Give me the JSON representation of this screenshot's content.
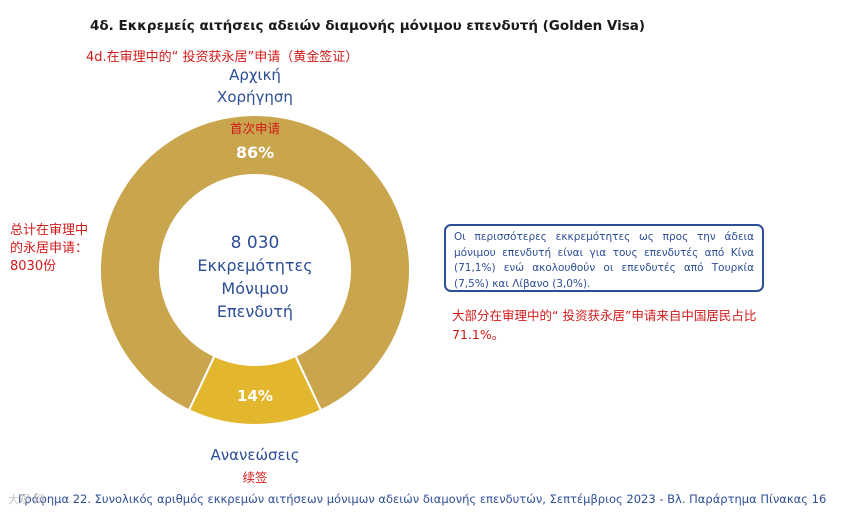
{
  "header": {
    "title": "4δ. Εκκρεμείς αιτήσεις αδειών διαμονής μόνιμου επενδυτή (Golden Visa)",
    "subtitle_cn": "4d.在审理中的“ 投资获永居”申请（黄金签证）"
  },
  "chart_data": {
    "type": "pie",
    "donut": true,
    "categories": [
      "Αρχική Χορήγηση",
      "Ανανεώσεις"
    ],
    "values": [
      86,
      14
    ],
    "value_labels": [
      "86%",
      "14%"
    ],
    "category_labels_cn": [
      "首次申请",
      "续签"
    ],
    "colors": [
      "#c9a54e",
      "#e2b72e"
    ],
    "center_label": [
      "8 030",
      "Εκκρεμότητες",
      "Μόνιμου",
      "Επενδυτή"
    ]
  },
  "notes": {
    "left_cn": [
      "总计在审理中",
      "的永居申请：",
      "8030份"
    ],
    "box_text": "Οι περισσότερες εκκρεμότητες ως προς την άδεια μόνιμου επενδυτή είναι για τους επενδυτές από Κίνα (71,1%) ενώ ακολουθούν οι επενδυτές από Τουρκία (7,5%) και Λίβανο (3,0%).",
    "right_cn": "大部分在审理中的“ 投资获永居”申请来自中国居民占比71.1%。"
  },
  "footer": {
    "text": "Γράφημα 22. Συνολικός αριθμός εκκρεμών αιτήσεων μόνιμων αδειών διαμονής επενδυτών, Σεπτέμβριος 2023 - Βλ. Παράρτημα Πίνακας 16"
  },
  "watermark": "大观 网"
}
